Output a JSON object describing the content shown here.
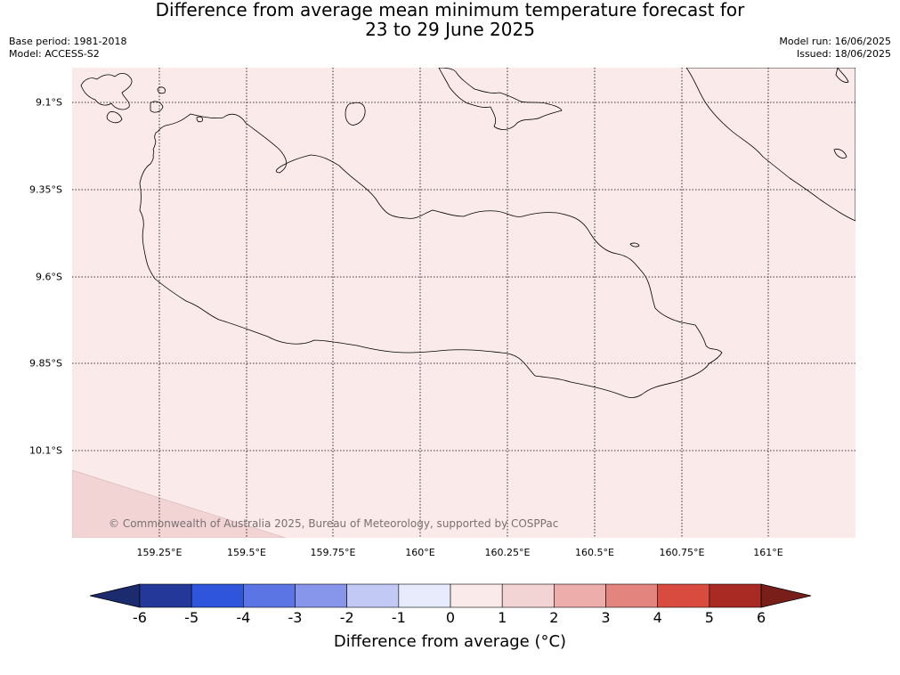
{
  "title": {
    "line1": "Difference from average mean minimum temperature forecast for",
    "line2": "23 to 29 June 2025"
  },
  "meta": {
    "base_period": "Base period: 1981-2018",
    "model": "Model: ACCESS-S2",
    "model_run": "Model run: 16/06/2025",
    "issued": "Issued: 18/06/2025"
  },
  "map": {
    "background_color": "#fbeaea",
    "region_0_1_color": "#f2d4d4",
    "coastline_color": "#000000",
    "gridlines": "dotted",
    "lat_labels": [
      "9.1°S",
      "9.35°S",
      "9.6°S",
      "9.85°S",
      "10.1°S"
    ],
    "lon_labels": [
      "159.25°E",
      "159.5°E",
      "159.75°E",
      "160°E",
      "160.25°E",
      "160.5°E",
      "160.75°E",
      "161°E"
    ],
    "copyright": "© Commonwealth of Australia 2025, Bureau of Meteorology, supported by COSPPac"
  },
  "colorbar": {
    "ticks": [
      "-6",
      "-5",
      "-4",
      "-3",
      "-2",
      "-1",
      "0",
      "1",
      "2",
      "3",
      "4",
      "5",
      "6"
    ],
    "colors": [
      "#24389a",
      "#2f55dd",
      "#5c75e4",
      "#8796eb",
      "#c2c9f5",
      "#e8ebfb",
      "#fbeaea",
      "#f2d4d4",
      "#ecadab",
      "#e4847e",
      "#da4b3f",
      "#a92a23"
    ],
    "under_color": "#1c2a6e",
    "over_color": "#7a1e1a",
    "label": "Difference from average (°C)"
  }
}
